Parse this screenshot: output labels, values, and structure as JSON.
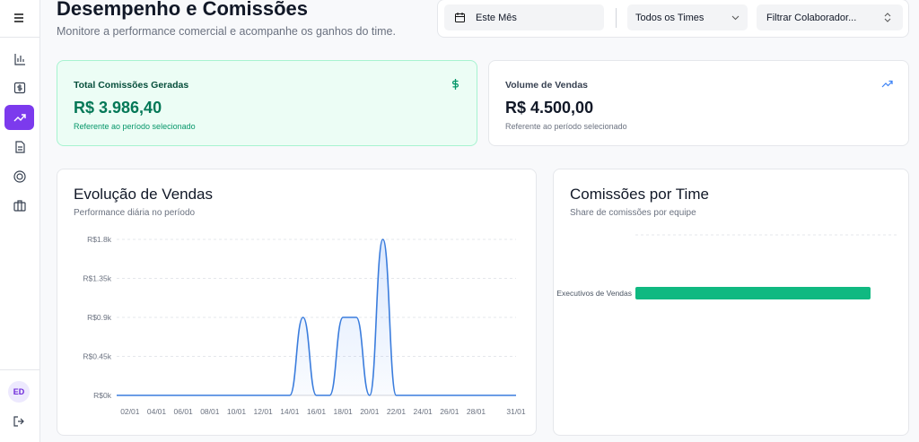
{
  "sidebar": {
    "avatar": "ED"
  },
  "header": {
    "title": "Desempenho e Comissões",
    "subtitle": "Monitore a performance comercial e acompanhe os ganhos do time."
  },
  "filters": {
    "period": "Este Mês",
    "team": "Todos os Times",
    "collaborator": "Filtrar Colaborador..."
  },
  "cards": [
    {
      "label": "Total Comissões Geradas",
      "value": "R$ 3.986,40",
      "note": "Referente ao período selecionado"
    },
    {
      "label": "Volume de Vendas",
      "value": "R$ 4.500,00",
      "note": "Referente ao período selecionado"
    }
  ],
  "chart_data": [
    {
      "type": "line",
      "title": "Evolução de Vendas",
      "subtitle": "Performance diária no período",
      "categories": [
        null,
        "02/01",
        null,
        "04/01",
        null,
        "06/01",
        null,
        "08/01",
        null,
        "10/01",
        null,
        "12/01",
        null,
        "14/01",
        null,
        "16/01",
        null,
        "18/01",
        null,
        "20/01",
        null,
        "22/01",
        null,
        "24/01",
        null,
        "26/01",
        null,
        "28/01",
        null,
        null,
        "31/01"
      ],
      "values": [
        0,
        0,
        0,
        0,
        0,
        0,
        0,
        0,
        0,
        0,
        0,
        0,
        0,
        0,
        900,
        0,
        0,
        900,
        900,
        0,
        1800,
        0,
        0,
        0,
        0,
        0,
        0,
        0,
        0,
        0,
        0
      ],
      "color": "#3b7ddd",
      "ylim": [
        0,
        1800
      ],
      "yticks": [
        {
          "value": 0,
          "label": "R$0k"
        },
        {
          "value": 450,
          "label": "R$0.45k"
        },
        {
          "value": 900,
          "label": "R$0.9k"
        },
        {
          "value": 1350,
          "label": "R$1.35k"
        },
        {
          "value": 1800,
          "label": "R$1.8k"
        }
      ],
      "grid": true
    },
    {
      "type": "hbar",
      "title": "Comissões por Time",
      "subtitle": "Share de comissões por equipe",
      "categories": [
        "Executivos de Vendas"
      ],
      "values": [
        3986.4
      ],
      "color": "#10b981",
      "xlim": [
        0,
        3986.4
      ],
      "grid": true
    }
  ]
}
